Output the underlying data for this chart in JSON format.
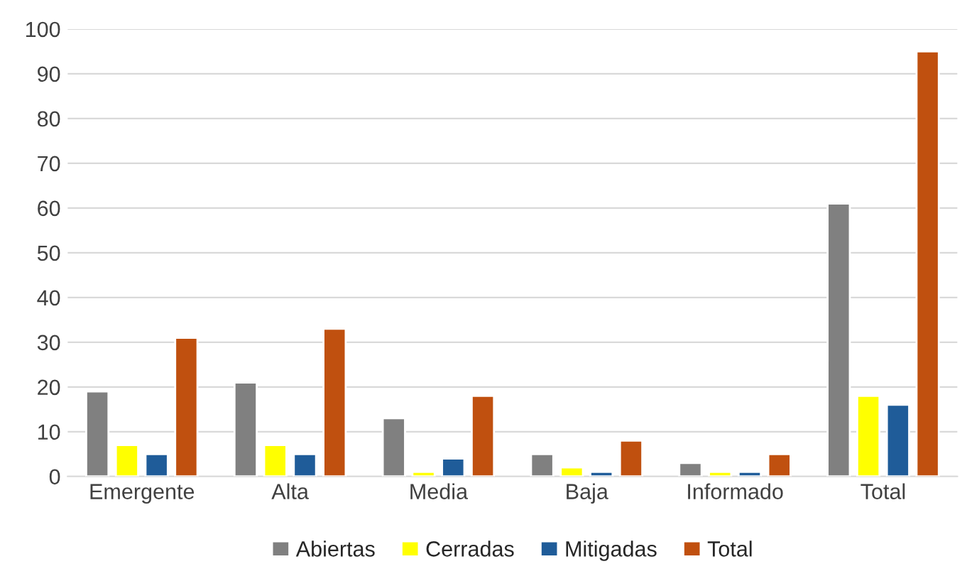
{
  "chart_data": {
    "type": "bar",
    "categories": [
      "Emergente",
      "Alta",
      "Media",
      "Baja",
      "Informado",
      "Total"
    ],
    "series": [
      {
        "name": "Abiertas",
        "color": "#808080",
        "values": [
          19,
          21,
          13,
          5,
          3,
          61
        ]
      },
      {
        "name": "Cerradas",
        "color": "#ffff00",
        "values": [
          7,
          7,
          1,
          2,
          1,
          18
        ]
      },
      {
        "name": "Mitigadas",
        "color": "#1f5c99",
        "values": [
          5,
          5,
          4,
          1,
          1,
          16
        ]
      },
      {
        "name": "Total",
        "color": "#c0500f",
        "values": [
          31,
          33,
          18,
          8,
          5,
          95
        ]
      }
    ],
    "ylim": [
      0,
      100
    ],
    "yticks": [
      0,
      10,
      20,
      30,
      40,
      50,
      60,
      70,
      80,
      90,
      100
    ],
    "grid": "y",
    "legend": "bottom"
  }
}
